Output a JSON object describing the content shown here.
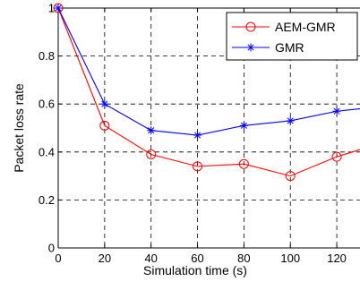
{
  "chart_data": {
    "type": "line",
    "title": "",
    "xlabel": "Simulation time (s)",
    "ylabel": "Packet loss rate",
    "xlim": [
      0,
      130
    ],
    "ylim": [
      0,
      1
    ],
    "x_ticks": [
      0,
      20,
      40,
      60,
      80,
      100,
      120
    ],
    "x_tick_labels": [
      "0",
      "20",
      "40",
      "60",
      "80",
      "100",
      "120"
    ],
    "y_ticks": [
      0,
      0.2,
      0.4,
      0.6,
      0.8,
      1
    ],
    "y_tick_labels": [
      "0",
      "0.2",
      "0.4",
      "0.6",
      "0.8",
      "1"
    ],
    "grid": true,
    "legend_position": "top-right",
    "x": [
      0,
      20,
      40,
      60,
      80,
      100,
      120,
      130
    ],
    "series": [
      {
        "name": "AEM-GMR",
        "values": [
          1.0,
          0.51,
          0.39,
          0.34,
          0.35,
          0.3,
          0.38,
          0.41
        ],
        "color": "#ff0000",
        "marker": "circle"
      },
      {
        "name": "GMR",
        "values": [
          1.0,
          0.6,
          0.49,
          0.47,
          0.51,
          0.53,
          0.57,
          0.58
        ],
        "color": "#0000ff",
        "marker": "star"
      }
    ]
  }
}
